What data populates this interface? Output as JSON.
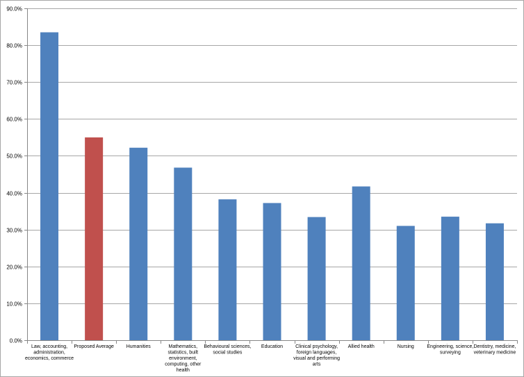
{
  "chart_data": {
    "type": "bar",
    "title": "",
    "xlabel": "",
    "ylabel": "",
    "ylim": [
      0,
      90
    ],
    "ytick_values": [
      0,
      10,
      20,
      30,
      40,
      50,
      60,
      70,
      80,
      90
    ],
    "ytick_labels": [
      "0.0%",
      "10.0%",
      "20.0%",
      "30.0%",
      "40.0%",
      "50.0%",
      "60.0%",
      "70.0%",
      "80.0%",
      "90.0%"
    ],
    "grid": true,
    "legend": "none",
    "categories": [
      "Law, accounting, administration, economics, commerce",
      "Proposed Average",
      "Humanities",
      "Mathematics, statistics, built environment, computing, other health",
      "Behavioural sciences, social studies",
      "Education",
      "Clinical psychology, foreign languages, visual and performing arts",
      "Allied health",
      "Nursing",
      "Engineering, science, surveying",
      "Dentistry, medicine, veterinary medicine"
    ],
    "category_label_lines": [
      [
        "Law, accounting,",
        "administration,",
        "economics, commerce"
      ],
      [
        "Proposed Average"
      ],
      [
        "Humanities"
      ],
      [
        "Mathematics,",
        "statistics, built",
        "environment,",
        "computing, other",
        "health"
      ],
      [
        "Behavioural sciences,",
        "social studies"
      ],
      [
        "Education"
      ],
      [
        "Clinical psychology,",
        "foreign languages,",
        "visual and performing",
        "arts"
      ],
      [
        "Allied health"
      ],
      [
        "Nursing"
      ],
      [
        "Engineering, science,",
        "surveying"
      ],
      [
        "Dentistry, medicine,",
        "veterinary medicine"
      ]
    ],
    "values": [
      83.5,
      55.0,
      52.2,
      46.8,
      38.2,
      37.2,
      33.4,
      41.7,
      31.0,
      33.5,
      31.7
    ],
    "colors": [
      "#4f81bd",
      "#c0504d",
      "#4f81bd",
      "#4f81bd",
      "#4f81bd",
      "#4f81bd",
      "#4f81bd",
      "#4f81bd",
      "#4f81bd",
      "#4f81bd",
      "#4f81bd"
    ],
    "gridline_color": "#a6a6a6",
    "axis_color": "#868686"
  }
}
